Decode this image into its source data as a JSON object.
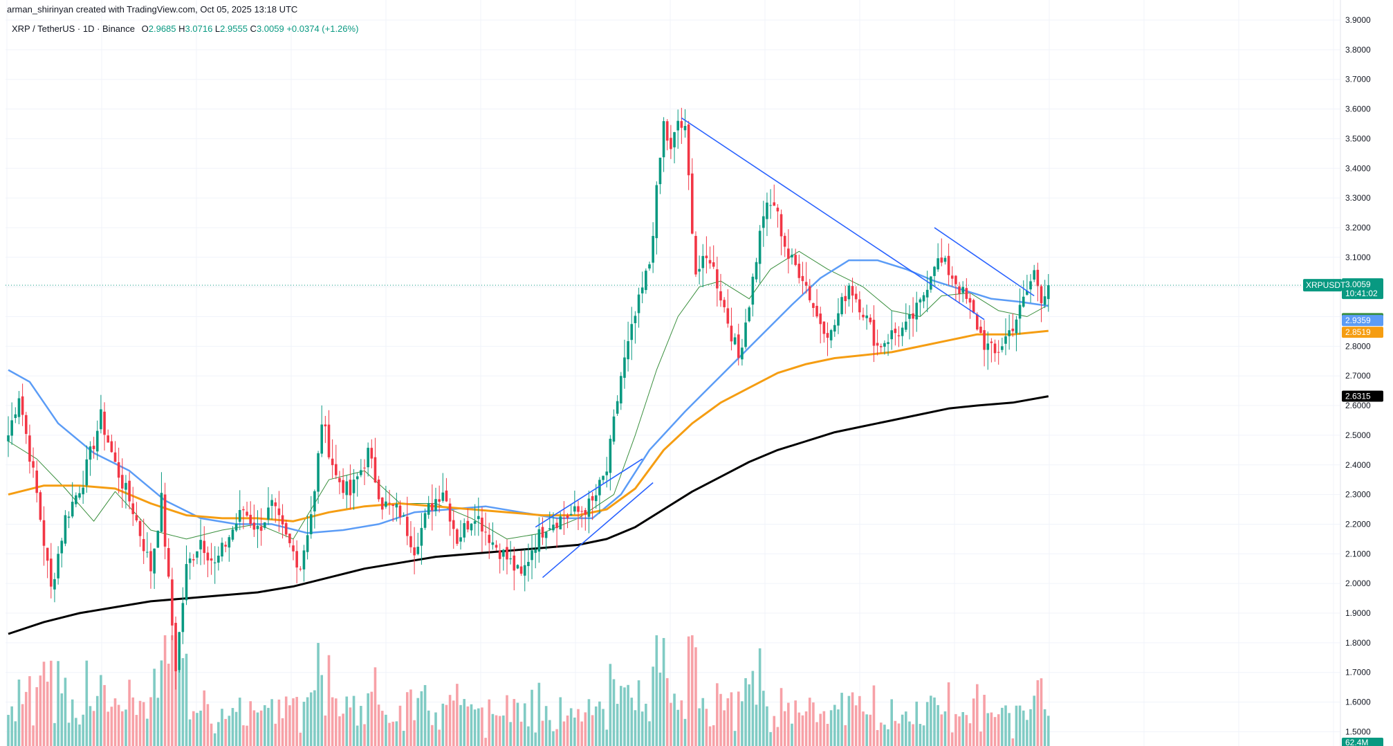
{
  "header": {
    "credit": "arman_shirinyan created with TradingView.com, Oct 05, 2025 13:18 UTC",
    "symbol": "XRP / TetherUS · 1D · Binance",
    "open_label": "O",
    "open": "2.9685",
    "high_label": "H",
    "high": "3.0716",
    "low_label": "L",
    "low": "2.9555",
    "close_label": "C",
    "close": "3.0059",
    "change": "+0.0374 (+1.26%)"
  },
  "colors": {
    "up": "#089981",
    "down": "#f23645",
    "vol_up": "#80cbc4",
    "vol_down": "#f7a1a7",
    "ma_fast": "#388e3c",
    "ma_mid": "#5b9cf6",
    "ma_slow": "#f59d12",
    "ma_long": "#000000",
    "trendline": "#2962ff",
    "last_price": "#089981"
  },
  "chart_data": {
    "type": "candlestick",
    "timeframe": "1D",
    "y_axis": {
      "range": [
        1.45,
        3.92
      ],
      "ticks": [
        "3.9000",
        "3.8000",
        "3.7000",
        "3.6000",
        "3.5000",
        "3.4000",
        "3.3000",
        "3.2000",
        "3.1000",
        "3.0000",
        "2.9000",
        "2.8000",
        "2.7000",
        "2.6000",
        "2.5000",
        "2.4000",
        "2.3000",
        "2.2000",
        "2.1000",
        "2.0000",
        "1.9000",
        "1.8000",
        "1.7000",
        "1.6000",
        "1.5000"
      ]
    },
    "key_points": [
      [
        0,
        2.5
      ],
      [
        3,
        2.64
      ],
      [
        8,
        2.3
      ],
      [
        12,
        1.98
      ],
      [
        16,
        2.22
      ],
      [
        21,
        2.35
      ],
      [
        26,
        2.56
      ],
      [
        30,
        2.4
      ],
      [
        35,
        2.25
      ],
      [
        40,
        2.05
      ],
      [
        43,
        2.28
      ],
      [
        47,
        1.72
      ],
      [
        50,
        2.05
      ],
      [
        54,
        2.15
      ],
      [
        58,
        2.06
      ],
      [
        62,
        2.16
      ],
      [
        66,
        2.25
      ],
      [
        70,
        2.18
      ],
      [
        74,
        2.26
      ],
      [
        78,
        2.15
      ],
      [
        82,
        2.06
      ],
      [
        86,
        2.3
      ],
      [
        88,
        2.55
      ],
      [
        92,
        2.36
      ],
      [
        96,
        2.3
      ],
      [
        101,
        2.44
      ],
      [
        105,
        2.27
      ],
      [
        110,
        2.24
      ],
      [
        114,
        2.12
      ],
      [
        118,
        2.25
      ],
      [
        122,
        2.32
      ],
      [
        126,
        2.15
      ],
      [
        131,
        2.24
      ],
      [
        136,
        2.14
      ],
      [
        141,
        2.07
      ],
      [
        144,
        2.02
      ],
      [
        147,
        2.12
      ],
      [
        151,
        2.2
      ],
      [
        155,
        2.22
      ],
      [
        160,
        2.24
      ],
      [
        164,
        2.27
      ],
      [
        168,
        2.38
      ],
      [
        172,
        2.7
      ],
      [
        176,
        2.9
      ],
      [
        180,
        3.08
      ],
      [
        184,
        3.55
      ],
      [
        186,
        3.45
      ],
      [
        188,
        3.56
      ],
      [
        190,
        3.52
      ],
      [
        193,
        3.05
      ],
      [
        197,
        3.1
      ],
      [
        201,
        2.93
      ],
      [
        205,
        2.76
      ],
      [
        208,
        2.95
      ],
      [
        212,
        3.25
      ],
      [
        215,
        3.28
      ],
      [
        219,
        3.1
      ],
      [
        223,
        3.04
      ],
      [
        227,
        2.9
      ],
      [
        231,
        2.84
      ],
      [
        236,
        3.01
      ],
      [
        240,
        2.92
      ],
      [
        244,
        2.8
      ],
      [
        248,
        2.84
      ],
      [
        252,
        2.86
      ],
      [
        256,
        2.94
      ],
      [
        260,
        3.09
      ],
      [
        263,
        3.07
      ],
      [
        266,
        3.02
      ],
      [
        270,
        2.93
      ],
      [
        274,
        2.81
      ],
      [
        277,
        2.77
      ],
      [
        281,
        2.85
      ],
      [
        284,
        2.92
      ],
      [
        288,
        3.05
      ],
      [
        290,
        2.97
      ],
      [
        292,
        3.01
      ]
    ],
    "moving_averages": [
      {
        "name": "",
        "color_key": "ma_fast",
        "points": [
          [
            0,
            2.48
          ],
          [
            8,
            2.42
          ],
          [
            16,
            2.32
          ],
          [
            24,
            2.21
          ],
          [
            30,
            2.31
          ],
          [
            40,
            2.18
          ],
          [
            50,
            2.15
          ],
          [
            60,
            2.18
          ],
          [
            70,
            2.2
          ],
          [
            80,
            2.15
          ],
          [
            90,
            2.35
          ],
          [
            100,
            2.38
          ],
          [
            110,
            2.27
          ],
          [
            120,
            2.27
          ],
          [
            130,
            2.22
          ],
          [
            140,
            2.15
          ],
          [
            150,
            2.17
          ],
          [
            160,
            2.22
          ],
          [
            170,
            2.3
          ],
          [
            176,
            2.5
          ],
          [
            182,
            2.72
          ],
          [
            188,
            2.9
          ],
          [
            194,
            3.0
          ],
          [
            200,
            3.02
          ],
          [
            208,
            2.96
          ],
          [
            214,
            3.06
          ],
          [
            222,
            3.12
          ],
          [
            230,
            3.06
          ],
          [
            240,
            3.0
          ],
          [
            248,
            2.92
          ],
          [
            256,
            2.9
          ],
          [
            262,
            2.97
          ],
          [
            270,
            2.98
          ],
          [
            278,
            2.92
          ],
          [
            286,
            2.9
          ],
          [
            292,
            2.94
          ]
        ]
      },
      {
        "name": "",
        "color_key": "ma_mid",
        "points": [
          [
            0,
            2.72
          ],
          [
            6,
            2.68
          ],
          [
            14,
            2.54
          ],
          [
            24,
            2.44
          ],
          [
            34,
            2.38
          ],
          [
            44,
            2.28
          ],
          [
            54,
            2.22
          ],
          [
            64,
            2.2
          ],
          [
            74,
            2.2
          ],
          [
            84,
            2.17
          ],
          [
            94,
            2.18
          ],
          [
            104,
            2.2
          ],
          [
            114,
            2.24
          ],
          [
            124,
            2.25
          ],
          [
            134,
            2.26
          ],
          [
            144,
            2.24
          ],
          [
            154,
            2.22
          ],
          [
            164,
            2.22
          ],
          [
            172,
            2.3
          ],
          [
            180,
            2.45
          ],
          [
            190,
            2.58
          ],
          [
            200,
            2.7
          ],
          [
            210,
            2.82
          ],
          [
            220,
            2.94
          ],
          [
            228,
            3.03
          ],
          [
            236,
            3.09
          ],
          [
            244,
            3.09
          ],
          [
            252,
            3.06
          ],
          [
            260,
            3.02
          ],
          [
            268,
            2.99
          ],
          [
            276,
            2.96
          ],
          [
            284,
            2.95
          ],
          [
            292,
            2.936
          ]
        ]
      },
      {
        "name": "",
        "color_key": "ma_slow",
        "points": [
          [
            0,
            2.3
          ],
          [
            10,
            2.33
          ],
          [
            20,
            2.33
          ],
          [
            30,
            2.32
          ],
          [
            40,
            2.27
          ],
          [
            50,
            2.23
          ],
          [
            60,
            2.22
          ],
          [
            70,
            2.22
          ],
          [
            80,
            2.21
          ],
          [
            90,
            2.24
          ],
          [
            100,
            2.26
          ],
          [
            110,
            2.27
          ],
          [
            120,
            2.26
          ],
          [
            130,
            2.25
          ],
          [
            140,
            2.24
          ],
          [
            150,
            2.23
          ],
          [
            160,
            2.23
          ],
          [
            168,
            2.25
          ],
          [
            176,
            2.32
          ],
          [
            184,
            2.45
          ],
          [
            192,
            2.54
          ],
          [
            200,
            2.61
          ],
          [
            208,
            2.66
          ],
          [
            216,
            2.71
          ],
          [
            224,
            2.74
          ],
          [
            232,
            2.76
          ],
          [
            240,
            2.77
          ],
          [
            248,
            2.78
          ],
          [
            256,
            2.8
          ],
          [
            264,
            2.82
          ],
          [
            272,
            2.84
          ],
          [
            282,
            2.84
          ],
          [
            292,
            2.852
          ]
        ]
      },
      {
        "name": "",
        "color_key": "ma_long",
        "points": [
          [
            0,
            1.83
          ],
          [
            10,
            1.87
          ],
          [
            20,
            1.9
          ],
          [
            30,
            1.92
          ],
          [
            40,
            1.94
          ],
          [
            50,
            1.95
          ],
          [
            60,
            1.96
          ],
          [
            70,
            1.97
          ],
          [
            80,
            1.99
          ],
          [
            90,
            2.02
          ],
          [
            100,
            2.05
          ],
          [
            110,
            2.07
          ],
          [
            120,
            2.09
          ],
          [
            130,
            2.1
          ],
          [
            140,
            2.11
          ],
          [
            150,
            2.12
          ],
          [
            160,
            2.13
          ],
          [
            168,
            2.15
          ],
          [
            176,
            2.19
          ],
          [
            184,
            2.25
          ],
          [
            192,
            2.31
          ],
          [
            200,
            2.36
          ],
          [
            208,
            2.41
          ],
          [
            216,
            2.45
          ],
          [
            224,
            2.48
          ],
          [
            232,
            2.51
          ],
          [
            240,
            2.53
          ],
          [
            248,
            2.55
          ],
          [
            256,
            2.57
          ],
          [
            264,
            2.59
          ],
          [
            272,
            2.6
          ],
          [
            282,
            2.61
          ],
          [
            292,
            2.6315
          ]
        ]
      }
    ],
    "trendlines": [
      {
        "from": [
          189,
          3.57
        ],
        "to": [
          274,
          2.89
        ]
      },
      {
        "from": [
          260,
          3.2
        ],
        "to": [
          288,
          2.97
        ]
      },
      {
        "from": [
          148,
          2.19
        ],
        "to": [
          178,
          2.42
        ]
      },
      {
        "from": [
          150,
          2.02
        ],
        "to": [
          181,
          2.34
        ]
      }
    ],
    "volume": {
      "label": "62.4M"
    },
    "price_tags": [
      {
        "label": "XRPUSDT",
        "value": "3.0059",
        "sub": "10:41:02",
        "color_key": "last_price"
      },
      {
        "value": "2.9400",
        "color_key": "ma_fast"
      },
      {
        "value": "2.9359",
        "color_key": "ma_mid"
      },
      {
        "value": "2.8519",
        "color_key": "ma_slow"
      },
      {
        "value": "2.6315",
        "color_key": "ma_long"
      }
    ],
    "last_price": 3.0059
  }
}
